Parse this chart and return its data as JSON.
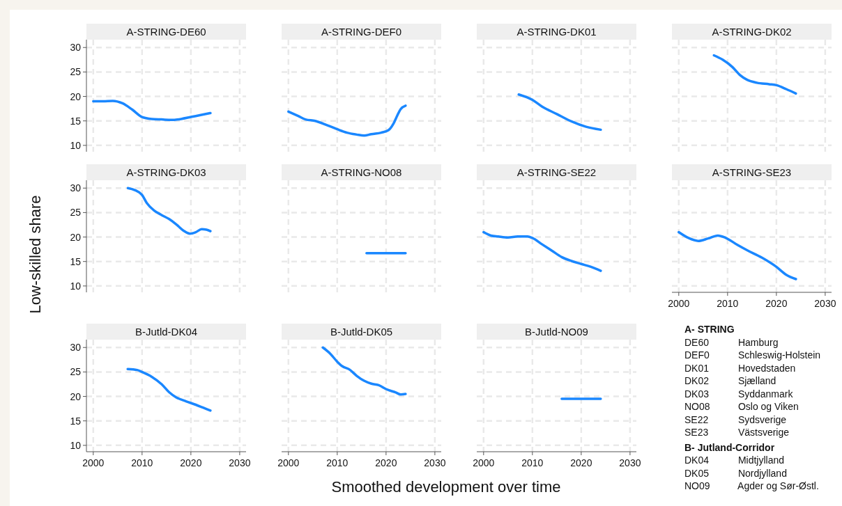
{
  "chart_data": [
    {
      "type": "line",
      "title": "A-STRING-DE60",
      "x": [
        2000,
        2002,
        2004,
        2006,
        2008,
        2010,
        2012,
        2014,
        2016,
        2018,
        2020,
        2022,
        2024
      ],
      "values": [
        19.0,
        19.0,
        19.1,
        18.6,
        17.3,
        15.8,
        15.4,
        15.3,
        15.2,
        15.4,
        15.8,
        16.2,
        16.6
      ],
      "color": "#1a87ff",
      "xlim": [
        1998.6,
        2031.3
      ],
      "ylim": [
        8.7,
        31.6
      ],
      "xticks": [
        2000,
        2010,
        2020,
        2030
      ],
      "yticks": [
        10,
        15,
        20,
        25,
        30
      ],
      "grid": true,
      "tick_labels": "y"
    },
    {
      "type": "line",
      "title": "A-STRING-DEF0",
      "x": [
        2000,
        2002,
        2003.5,
        2005.5,
        2008,
        2010,
        2012,
        2014,
        2015.5,
        2017,
        2019,
        2020.5,
        2021.5,
        2022.3,
        2023,
        2024
      ],
      "values": [
        16.9,
        16.0,
        15.3,
        15.0,
        14.1,
        13.3,
        12.6,
        12.2,
        12.0,
        12.3,
        12.6,
        13.1,
        14.4,
        16.1,
        17.4,
        18.1
      ],
      "color": "#1a87ff",
      "xlim": [
        1998.6,
        2031.3
      ],
      "ylim": [
        8.7,
        31.6
      ],
      "xticks": [
        2000,
        2010,
        2020,
        2030
      ],
      "yticks": [
        10,
        15,
        20,
        25,
        30
      ],
      "grid": true,
      "tick_labels": false
    },
    {
      "type": "line",
      "title": "A-STRING-DK01",
      "x": [
        2007.2,
        2010,
        2012,
        2015,
        2018,
        2021,
        2024
      ],
      "values": [
        20.4,
        19.3,
        17.9,
        16.4,
        14.9,
        13.8,
        13.2
      ],
      "color": "#1a87ff",
      "xlim": [
        1998.6,
        2031.3
      ],
      "ylim": [
        8.7,
        31.6
      ],
      "xticks": [
        2000,
        2010,
        2020,
        2030
      ],
      "yticks": [
        10,
        15,
        20,
        25,
        30
      ],
      "grid": true,
      "tick_labels": false
    },
    {
      "type": "line",
      "title": "A-STRING-DK02",
      "x": [
        2007.2,
        2009,
        2011,
        2012.5,
        2014,
        2016,
        2018.5,
        2020,
        2022,
        2024
      ],
      "values": [
        28.4,
        27.5,
        26.0,
        24.4,
        23.4,
        22.8,
        22.5,
        22.3,
        21.5,
        20.6
      ],
      "color": "#1a87ff",
      "xlim": [
        1998.6,
        2031.3
      ],
      "ylim": [
        8.7,
        31.6
      ],
      "xticks": [
        2000,
        2010,
        2020,
        2030
      ],
      "yticks": [
        10,
        15,
        20,
        25,
        30
      ],
      "grid": true,
      "tick_labels": false
    },
    {
      "type": "line",
      "title": "A-STRING-DK03",
      "ylabel": "Low-skilled share",
      "x": [
        2007.1,
        2008.5,
        2010,
        2011,
        2012.5,
        2014,
        2015.5,
        2017,
        2018.5,
        2019.8,
        2021,
        2022.2,
        2023.2,
        2024
      ],
      "values": [
        30.0,
        29.6,
        28.6,
        26.9,
        25.4,
        24.5,
        23.7,
        22.6,
        21.3,
        20.7,
        21.0,
        21.6,
        21.5,
        21.2
      ],
      "color": "#1a87ff",
      "xlim": [
        1998.6,
        2031.3
      ],
      "ylim": [
        8.7,
        31.6
      ],
      "xticks": [
        2000,
        2010,
        2020,
        2030
      ],
      "yticks": [
        10,
        15,
        20,
        25,
        30
      ],
      "grid": true,
      "tick_labels": "y"
    },
    {
      "type": "line",
      "title": "A-STRING-NO08",
      "x": [
        2016,
        2024
      ],
      "values": [
        16.7,
        16.7
      ],
      "color": "#1a87ff",
      "xlim": [
        1998.6,
        2031.3
      ],
      "ylim": [
        8.7,
        31.6
      ],
      "xticks": [
        2000,
        2010,
        2020,
        2030
      ],
      "yticks": [
        10,
        15,
        20,
        25,
        30
      ],
      "grid": true,
      "tick_labels": false
    },
    {
      "type": "line",
      "title": "A-STRING-SE22",
      "x": [
        2000,
        2001.5,
        2003,
        2005,
        2007,
        2009,
        2010,
        2012,
        2014,
        2016,
        2018,
        2020,
        2022,
        2024
      ],
      "values": [
        21.0,
        20.3,
        20.1,
        19.9,
        20.1,
        20.1,
        19.8,
        18.5,
        17.2,
        15.9,
        15.1,
        14.5,
        13.9,
        13.1
      ],
      "color": "#1a87ff",
      "xlim": [
        1998.6,
        2031.3
      ],
      "ylim": [
        8.7,
        31.6
      ],
      "xticks": [
        2000,
        2010,
        2020,
        2030
      ],
      "yticks": [
        10,
        15,
        20,
        25,
        30
      ],
      "grid": true,
      "tick_labels": false
    },
    {
      "type": "line",
      "title": "A-STRING-SE23",
      "x": [
        2000,
        2002,
        2004,
        2006,
        2008,
        2009.5,
        2012,
        2014,
        2017,
        2020,
        2022,
        2024
      ],
      "values": [
        21.0,
        19.8,
        19.2,
        19.7,
        20.3,
        19.9,
        18.4,
        17.3,
        15.8,
        13.9,
        12.3,
        11.4
      ],
      "color": "#1a87ff",
      "xlim": [
        1998.6,
        2031.3
      ],
      "ylim": [
        8.7,
        31.6
      ],
      "xticks": [
        2000,
        2010,
        2020,
        2030
      ],
      "yticks": [
        10,
        15,
        20,
        25,
        30
      ],
      "grid": true,
      "tick_labels": "x"
    },
    {
      "type": "line",
      "title": "B-Jutld-DK04",
      "x": [
        2007.05,
        2009,
        2010,
        2012,
        2014,
        2015.5,
        2017,
        2019,
        2021,
        2022.5,
        2024
      ],
      "values": [
        25.6,
        25.4,
        25.0,
        24.0,
        22.5,
        20.9,
        19.8,
        19.0,
        18.3,
        17.7,
        17.1
      ],
      "color": "#1a87ff",
      "xlim": [
        1998.6,
        2031.3
      ],
      "ylim": [
        8.7,
        31.6
      ],
      "xticks": [
        2000,
        2010,
        2020,
        2030
      ],
      "yticks": [
        10,
        15,
        20,
        25,
        30
      ],
      "grid": true
    },
    {
      "type": "line",
      "title": "B-Jutld-DK05",
      "xlabel": "Smoothed development over time",
      "x": [
        2007.05,
        2008.5,
        2010,
        2011,
        2012.5,
        2014,
        2015.5,
        2017,
        2018.5,
        2020,
        2022,
        2023,
        2024
      ],
      "values": [
        30.0,
        28.8,
        27.1,
        26.2,
        25.5,
        24.2,
        23.2,
        22.6,
        22.3,
        21.5,
        20.8,
        20.4,
        20.5
      ],
      "color": "#1a87ff",
      "xlim": [
        1998.6,
        2031.3
      ],
      "ylim": [
        8.7,
        31.6
      ],
      "xticks": [
        2000,
        2010,
        2020,
        2030
      ],
      "yticks": [
        10,
        15,
        20,
        25,
        30
      ],
      "grid": true,
      "tick_labels": "x"
    },
    {
      "type": "line",
      "title": "B-Jutld-NO09",
      "x": [
        2016,
        2024
      ],
      "values": [
        19.5,
        19.5
      ],
      "color": "#1a87ff",
      "xlim": [
        1998.6,
        2031.3
      ],
      "ylim": [
        8.7,
        31.6
      ],
      "xticks": [
        2000,
        2010,
        2020,
        2030
      ],
      "yticks": [
        10,
        15,
        20,
        25,
        30
      ],
      "grid": true,
      "tick_labels": "x"
    },
    {
      "type": "other",
      "title": "A- STRING",
      "annotations": [
        "DE60 Hamburg",
        "DEF0 Schleswig-Holstein",
        "DK01 Hovedstaden",
        "DK02 Sjælland",
        "DK03 Syddanmark",
        "NO08 Oslo og Viken",
        "SE22 Sydsverige",
        "SE23 Västsverige"
      ]
    },
    {
      "type": "other",
      "title": "B- Jutland-Corridor",
      "annotations": [
        "DK04 Midtjylland",
        "DK05 Nordjylland",
        "NO09 Agder og Sør-Østl."
      ]
    }
  ]
}
